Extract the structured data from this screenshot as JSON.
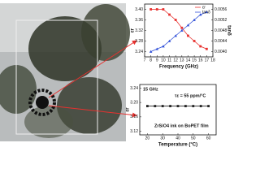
{
  "chart_data": [
    {
      "type": "line",
      "xlabel": "Frequency (GHz)",
      "ylabel": "εr",
      "y2label": "tanδ",
      "x": [
        8,
        9,
        10,
        11,
        12,
        13,
        14,
        15,
        16,
        17
      ],
      "xlim": [
        7,
        18
      ],
      "xticks": [
        7,
        8,
        9,
        10,
        11,
        12,
        13,
        14,
        15,
        16,
        17,
        18
      ],
      "ylim": [
        3.22,
        3.42
      ],
      "yticks": [
        {
          "value": 3.24,
          "label": "3.24"
        },
        {
          "value": 3.28,
          "label": "3.28"
        },
        {
          "value": 3.32,
          "label": "3.32"
        },
        {
          "value": 3.36,
          "label": "3.36"
        },
        {
          "value": 3.4,
          "label": "3.40"
        }
      ],
      "y2lim": [
        0.0038,
        0.0058
      ],
      "y2ticks": [
        {
          "value": 0.004,
          "label": "0.0040"
        },
        {
          "value": 0.0044,
          "label": "0.0044"
        },
        {
          "value": 0.0048,
          "label": "0.0048"
        },
        {
          "value": 0.0052,
          "label": "0.0052"
        },
        {
          "value": 0.0056,
          "label": "0.0056"
        }
      ],
      "legend": "upper right",
      "series": [
        {
          "name": "εr",
          "color": "#e8312f",
          "values": [
            3.4,
            3.4,
            3.4,
            3.38,
            3.36,
            3.33,
            3.3,
            3.28,
            3.26,
            3.25
          ]
        },
        {
          "name": "tanδ",
          "color": "#2f4fd8",
          "axis": "y2",
          "values": [
            0.004,
            0.0041,
            0.0042,
            0.0044,
            0.0046,
            0.0048,
            0.005,
            0.0052,
            0.0054,
            0.0055
          ]
        }
      ]
    },
    {
      "type": "line",
      "xlabel": "Temperature (°C)",
      "ylabel": "εr",
      "annotations": [
        "15 GHz",
        "τε = 55 ppm/°C",
        "ZrSiO4 ink on BoPET film"
      ],
      "x": [
        20,
        25,
        30,
        35,
        40,
        45,
        50,
        55,
        60
      ],
      "xlim": [
        15,
        65
      ],
      "xticks": [
        20,
        30,
        40,
        50,
        60
      ],
      "ylim": [
        3.11,
        3.25
      ],
      "yticks": [
        {
          "value": 3.12,
          "label": "3.12"
        },
        {
          "value": 3.16,
          "label": "3.16"
        },
        {
          "value": 3.2,
          "label": "3.20"
        },
        {
          "value": 3.24,
          "label": "3.24"
        }
      ],
      "series": [
        {
          "color": "#222222",
          "values": [
            3.19,
            3.19,
            3.19,
            3.19,
            3.19,
            3.19,
            3.19,
            3.19,
            3.19
          ]
        }
      ]
    }
  ]
}
